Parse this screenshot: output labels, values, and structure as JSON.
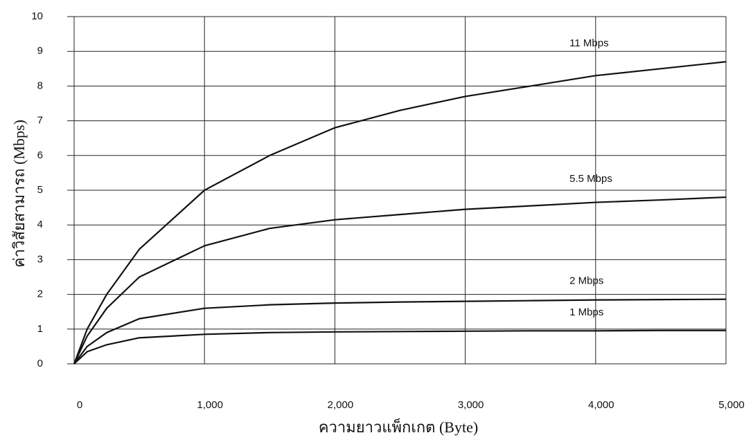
{
  "chart_data": {
    "type": "line",
    "x_label": "ความยาวแพ็กเกต (Byte)",
    "y_label": "ค่าวิสัยสามารถ (Mbps)",
    "x": [
      0,
      100,
      250,
      500,
      1000,
      1500,
      2000,
      2500,
      3000,
      3500,
      4000,
      4500,
      5000
    ],
    "series": [
      {
        "name": "11 Mbps",
        "color": "#111111",
        "values": [
          0,
          1.0,
          2.0,
          3.3,
          5.0,
          6.0,
          6.8,
          7.3,
          7.7,
          8.0,
          8.3,
          8.5,
          8.7
        ]
      },
      {
        "name": "5.5 Mbps",
        "color": "#111111",
        "values": [
          0,
          0.8,
          1.6,
          2.5,
          3.4,
          3.9,
          4.15,
          4.3,
          4.45,
          4.55,
          4.65,
          4.72,
          4.8
        ]
      },
      {
        "name": "2 Mbps",
        "color": "#111111",
        "values": [
          0,
          0.5,
          0.9,
          1.3,
          1.6,
          1.7,
          1.75,
          1.78,
          1.8,
          1.82,
          1.84,
          1.85,
          1.86
        ]
      },
      {
        "name": "1 Mbps",
        "color": "#111111",
        "values": [
          0,
          0.35,
          0.55,
          0.75,
          0.85,
          0.9,
          0.92,
          0.93,
          0.94,
          0.95,
          0.95,
          0.96,
          0.96
        ]
      }
    ],
    "xlim": [
      0,
      5000
    ],
    "xticks": [
      0,
      {
        "value": 1000,
        "label": "1,000"
      },
      {
        "value": 2000,
        "label": "2,000"
      },
      {
        "value": 3000,
        "label": "3,000"
      },
      {
        "value": 4000,
        "label": "4,000"
      },
      {
        "value": 5000,
        "label": "5,000"
      }
    ],
    "ylim": [
      0,
      10
    ],
    "yticks": [
      0,
      1,
      2,
      3,
      4,
      5,
      6,
      7,
      8,
      9,
      10
    ],
    "grid": true
  }
}
